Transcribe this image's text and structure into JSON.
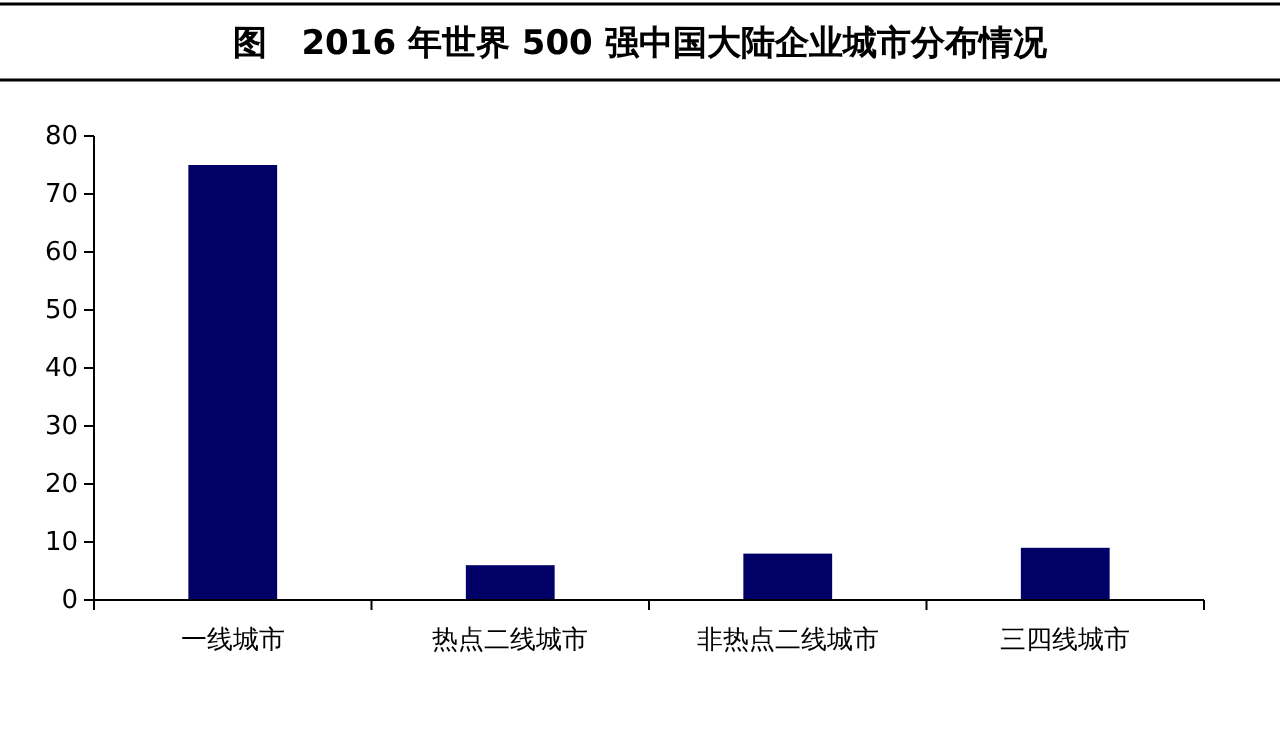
{
  "chart_data": {
    "type": "bar",
    "title": "图　2016 年世界 500 强中国大陆企业城市分布情况",
    "categories": [
      "一线城市",
      "热点二线城市",
      "非热点二线城市",
      "三四线城市"
    ],
    "values": [
      75,
      6,
      8,
      9
    ],
    "color": "#000066",
    "ylim": [
      0,
      80
    ],
    "yticks": [
      0,
      10,
      20,
      30,
      40,
      50,
      60,
      70,
      80
    ],
    "grid": false
  }
}
